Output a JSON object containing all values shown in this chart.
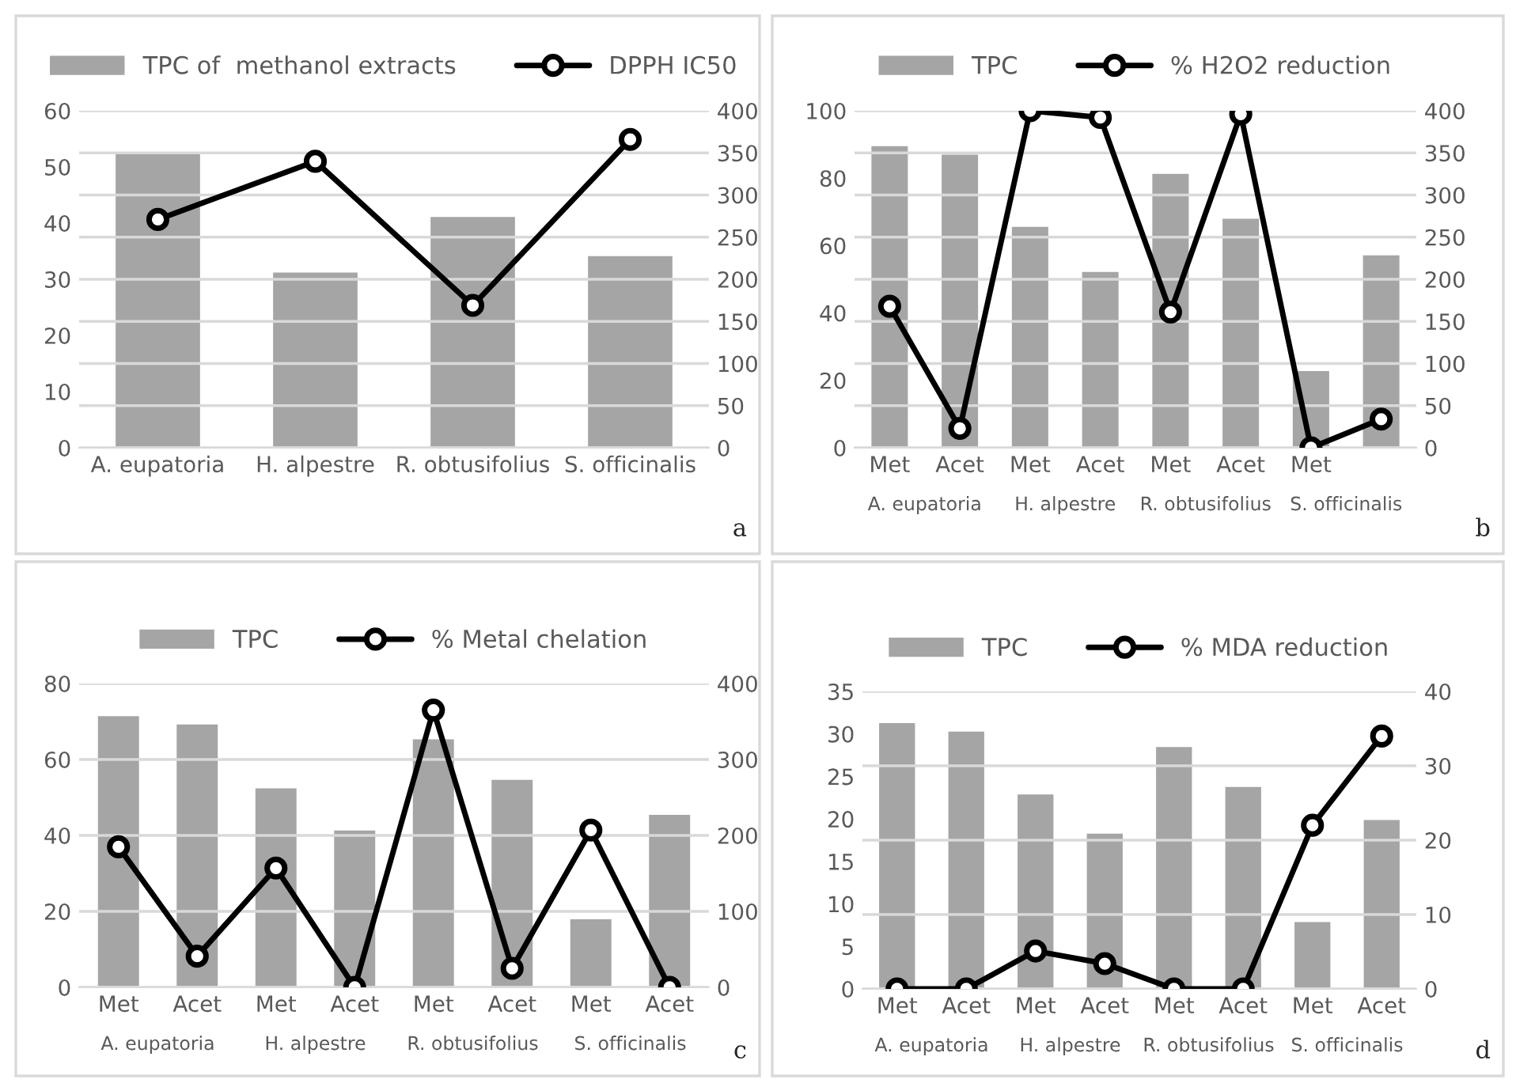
{
  "chart_data": [
    {
      "type": "bar",
      "categories": [
        "A. eupatoria",
        "H. alpestre",
        "R. obtusifolius",
        "S. officinalis"
      ],
      "series": [
        {
          "name": "TPC of  methanol extracts",
          "color": "#a5a5a5",
          "values": [
            52.5,
            31.4,
            41.3,
            34.3
          ]
        },
        {
          "name": "DPPH IC50",
          "type": "line",
          "axis": "y2",
          "color": "#000000",
          "values": [
            271,
            340,
            169,
            366
          ]
        }
      ],
      "ylim": [
        0,
        60
      ],
      "yticks": [
        0,
        10,
        20,
        30,
        40,
        50,
        60
      ],
      "y2lim": [
        0,
        400
      ],
      "y2ticks": [
        0,
        50,
        100,
        150,
        200,
        250,
        300,
        350,
        400
      ],
      "grid": true,
      "legend": "top",
      "marker": "circle",
      "annotations": [
        "a"
      ]
    },
    {
      "type": "bar",
      "categories": [
        "Met",
        "Acet",
        "Met",
        "Acet",
        "Met",
        "Acet",
        "Met",
        null
      ],
      "series": [
        {
          "name": "TPC",
          "color": "#a5a5a5",
          "values": [
            89.8,
            87.3,
            65.9,
            52.5,
            81.6,
            68.3,
            23.1,
            57.4
          ]
        },
        {
          "name": "% H2O2 reduction",
          "type": "line",
          "axis": "y2",
          "color": "#000000",
          "values": [
            168,
            23,
            400,
            392,
            161,
            396,
            0,
            34
          ]
        }
      ],
      "ylim": [
        0,
        100
      ],
      "yticks": [
        0,
        20,
        40,
        60,
        80,
        100
      ],
      "y2lim": [
        0,
        400
      ],
      "y2ticks": [
        0,
        50,
        100,
        150,
        200,
        250,
        300,
        350,
        400
      ],
      "grid": true,
      "legend": "top",
      "marker": "circle",
      "annotations": [
        "A. eupatoria",
        "H. alpestre",
        "R. obtusifolius",
        "S. officinalis",
        "b"
      ]
    },
    {
      "type": "bar",
      "categories": [
        "Met",
        "Acet",
        "Met",
        "Acet",
        "Met",
        "Acet",
        "Met",
        "Acet"
      ],
      "series": [
        {
          "name": "TPC",
          "color": "#a5a5a5",
          "values": [
            71.7,
            69.5,
            52.7,
            41.6,
            65.6,
            54.9,
            18.2,
            45.7
          ]
        },
        {
          "name": "% Metal chelation",
          "type": "line",
          "axis": "y2",
          "color": "#000000",
          "values": [
            185,
            41,
            157,
            0,
            365,
            25,
            207,
            0
          ]
        }
      ],
      "ylim": [
        0,
        80
      ],
      "yticks": [
        0,
        20,
        40,
        60,
        80
      ],
      "y2lim": [
        0,
        400
      ],
      "y2ticks": [
        0,
        100,
        200,
        300,
        400
      ],
      "grid": true,
      "legend": "top",
      "marker": "circle",
      "annotations": [
        "A. eupatoria",
        "H. alpestre",
        "R. obtusifolius",
        "S. officinalis",
        "c"
      ]
    },
    {
      "type": "bar",
      "categories": [
        "Met",
        "Acet",
        "Met",
        "Acet",
        "Met",
        "Acet",
        "Met",
        "Acet"
      ],
      "series": [
        {
          "name": "TPC",
          "color": "#a5a5a5",
          "values": [
            31.4,
            30.4,
            23.0,
            18.4,
            28.6,
            23.9,
            8.0,
            20.0
          ]
        },
        {
          "name": "% MDA reduction",
          "type": "line",
          "axis": "y2",
          "color": "#000000",
          "values": [
            0,
            0,
            5.1,
            3.4,
            0,
            0,
            22.0,
            34.0
          ]
        }
      ],
      "ylim": [
        0,
        35
      ],
      "yticks": [
        0,
        5,
        10,
        15,
        20,
        25,
        30,
        35
      ],
      "y2lim": [
        0,
        40
      ],
      "y2ticks": [
        0,
        10,
        20,
        30,
        40
      ],
      "grid": true,
      "legend": "top",
      "marker": "circle",
      "annotations": [
        "A. eupatoria",
        "H. alpestre",
        "R. obtusifolius",
        "S. officinalis",
        "d"
      ]
    }
  ]
}
